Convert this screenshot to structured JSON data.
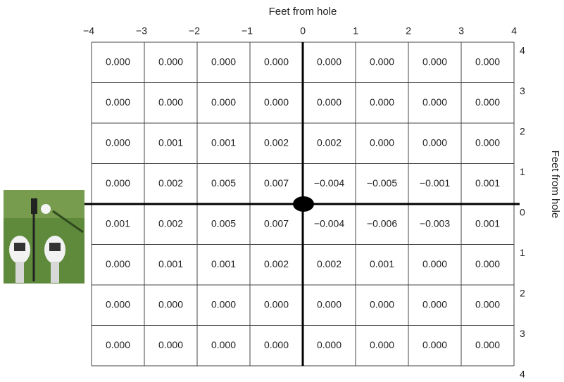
{
  "top_axis_label": "Feet from hole",
  "right_axis_label": "Feet from hole",
  "top_ticks": [
    "−4",
    "−3",
    "−2",
    "−1",
    "0",
    "1",
    "2",
    "3",
    "4"
  ],
  "right_ticks": [
    "4",
    "3",
    "2",
    "1",
    "0",
    "1",
    "2",
    "3",
    "4"
  ],
  "table": {
    "rows": [
      [
        "0.000",
        "0.000",
        "0.000",
        "0.000",
        "0.000",
        "0.000",
        "0.000",
        "0.000"
      ],
      [
        "0.000",
        "0.000",
        "0.000",
        "0.000",
        "0.000",
        "0.000",
        "0.000",
        "0.000"
      ],
      [
        "0.000",
        "0.001",
        "0.001",
        "0.002",
        "0.002",
        "0.000",
        "0.000",
        "0.000"
      ],
      [
        "0.000",
        "0.002",
        "0.005",
        "0.007",
        "−0.004",
        "−0.005",
        "−0.001",
        "0.001"
      ],
      [
        "0.001",
        "0.002",
        "0.005",
        "0.007",
        "−0.004",
        "−0.006",
        "−0.003",
        "0.001"
      ],
      [
        "0.000",
        "0.001",
        "0.001",
        "0.002",
        "0.002",
        "0.001",
        "0.000",
        "0.000"
      ],
      [
        "0.000",
        "0.000",
        "0.000",
        "0.000",
        "0.000",
        "0.000",
        "0.000",
        "0.000"
      ],
      [
        "0.000",
        "0.000",
        "0.000",
        "0.000",
        "0.000",
        "0.000",
        "0.000",
        "0.000"
      ]
    ]
  }
}
